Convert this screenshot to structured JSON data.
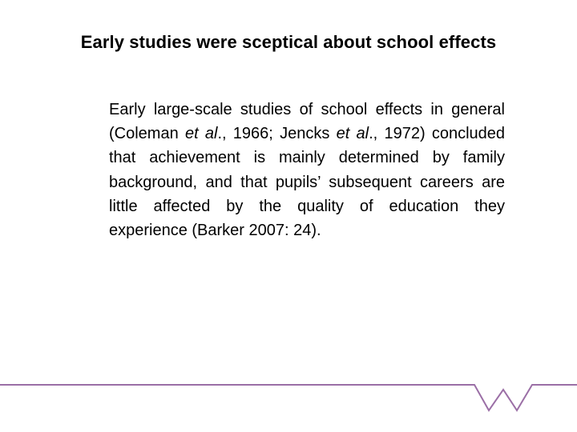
{
  "slide": {
    "title": "Early studies were sceptical about school effects",
    "body": {
      "part1": "Early large-scale studies of school effects in general (Coleman ",
      "etal1": "et al",
      "part2": "., 1966; Jencks ",
      "etal2": "et al",
      "part3": "., 1972) concluded that achievement is mainly determined by family background, and that pupils’ subsequent careers are little affected by the quality of education they experience (Barker  2007: 24)."
    }
  },
  "footer": {
    "icon": "w-logo-line",
    "color": "#9b6fa6"
  }
}
